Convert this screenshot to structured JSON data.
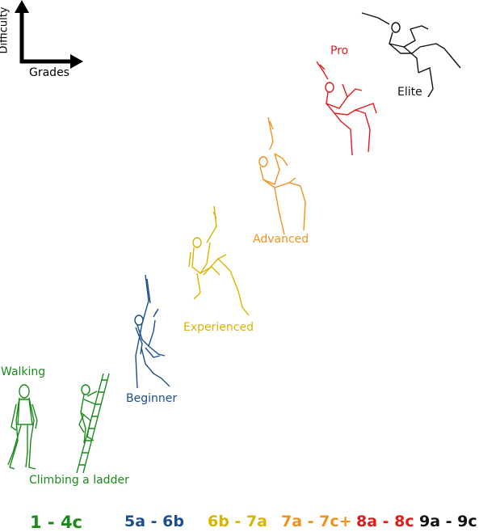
{
  "axes": {
    "y_label": "Difficulty",
    "x_label": "Grades"
  },
  "levels": [
    {
      "key": "walking",
      "label": "Walking",
      "color": "#1a8a1a"
    },
    {
      "key": "ladder",
      "label": "Climbing a ladder",
      "color": "#1a8a1a"
    },
    {
      "key": "beginner",
      "label": "Beginner",
      "color": "#1b4f8a"
    },
    {
      "key": "experienced",
      "label": "Experienced",
      "color": "#d9b400"
    },
    {
      "key": "advanced",
      "label": "Advanced",
      "color": "#f0921f"
    },
    {
      "key": "pro",
      "label": "Pro",
      "color": "#e01b1b"
    },
    {
      "key": "elite",
      "label": "Elite",
      "color": "#111111"
    }
  ],
  "grades": [
    {
      "range": "1 - 4c",
      "color": "#1a8a1a"
    },
    {
      "range": "5a - 6b",
      "color": "#1b4f8a"
    },
    {
      "range": "6b - 7a",
      "color": "#d9b400"
    },
    {
      "range": "7a - 7c+",
      "color": "#f0921f"
    },
    {
      "range": "8a - 8c",
      "color": "#e01b1b"
    },
    {
      "range": "9a - 9c",
      "color": "#111111"
    }
  ]
}
